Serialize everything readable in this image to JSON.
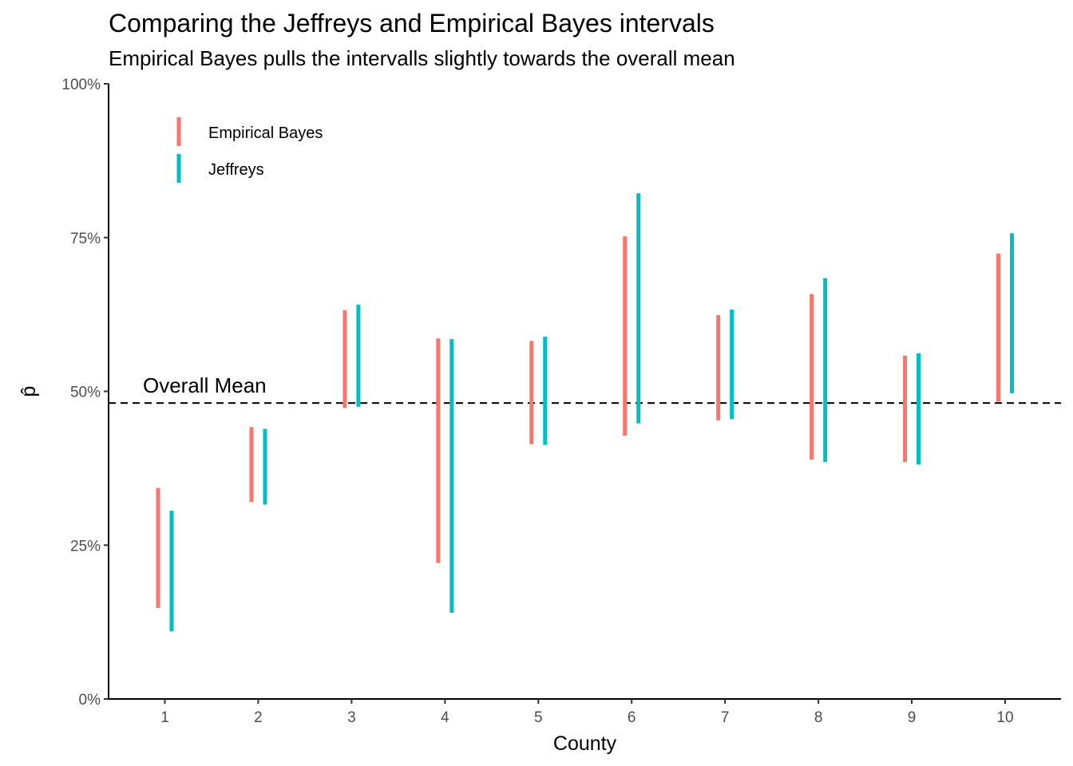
{
  "chart_data": {
    "type": "errorbar",
    "title": "Comparing the Jeffreys and Empirical Bayes intervals",
    "subtitle": "Empirical Bayes pulls the intervalls slightly towards the overall mean",
    "xlabel": "County",
    "ylabel": "p̂",
    "categories": [
      "1",
      "2",
      "3",
      "4",
      "5",
      "6",
      "7",
      "8",
      "9",
      "10"
    ],
    "ylim": [
      0,
      1
    ],
    "yticks": [
      0,
      0.25,
      0.5,
      0.75,
      1.0
    ],
    "ytick_labels": [
      "0%",
      "25%",
      "50%",
      "75%",
      "100%"
    ],
    "grid": false,
    "legend_position": "top-left",
    "series": [
      {
        "name": "Empirical Bayes",
        "color": "#F8766D",
        "lower": [
          0.148,
          0.32,
          0.473,
          0.221,
          0.414,
          0.428,
          0.453,
          0.389,
          0.385,
          0.483
        ],
        "upper": [
          0.343,
          0.442,
          0.632,
          0.586,
          0.582,
          0.752,
          0.624,
          0.658,
          0.558,
          0.724
        ]
      },
      {
        "name": "Jeffreys",
        "color": "#00BFC4",
        "lower": [
          0.11,
          0.316,
          0.475,
          0.14,
          0.413,
          0.448,
          0.455,
          0.385,
          0.381,
          0.497
        ],
        "upper": [
          0.306,
          0.439,
          0.641,
          0.585,
          0.589,
          0.822,
          0.633,
          0.684,
          0.562,
          0.757
        ]
      }
    ],
    "reference_line": {
      "value": 0.481,
      "style": "dashed",
      "label": "Overall Mean"
    }
  }
}
